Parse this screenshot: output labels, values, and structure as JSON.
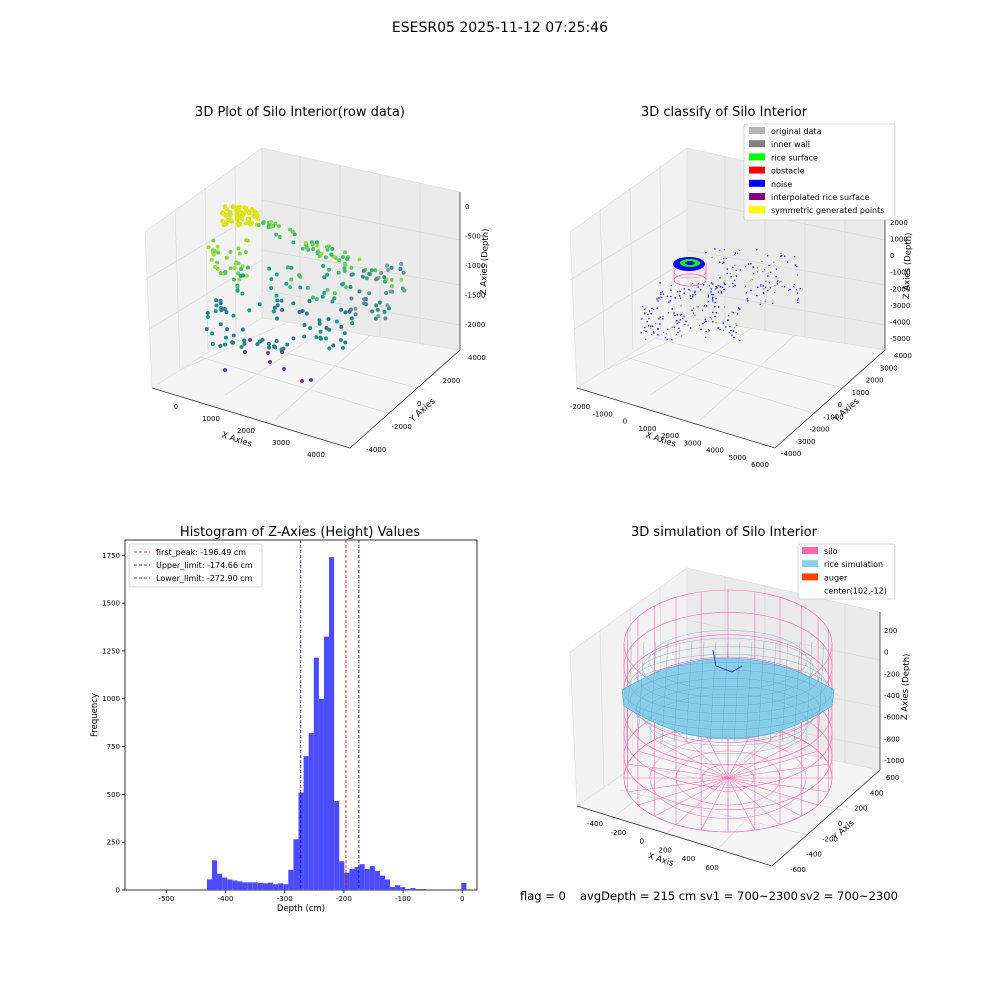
{
  "suptitle": "ESESR05 2025-11-12 07:25:46",
  "panels": {
    "raw": {
      "title": "3D Plot of Silo Interior(row data)",
      "xlabel": "X Axies",
      "ylabel": "Y Axies",
      "zlabel": "Z Axies (Depth)",
      "xticks": [
        "0",
        "1000",
        "2000",
        "3000",
        "4000"
      ],
      "yticks": [
        "4000",
        "2000",
        "0",
        "-2000",
        "-4000"
      ],
      "zticks": [
        "0",
        "-500",
        "-1000",
        "-1500",
        "-2000"
      ]
    },
    "classify": {
      "title": "3D classify of Silo Interior",
      "xlabel": "X Axies",
      "ylabel": "Y Axies",
      "zlabel": "Z Axies (Depth)",
      "xticks": [
        "-2000",
        "-1000",
        "0",
        "1000",
        "2000",
        "3000",
        "4000",
        "5000",
        "6000"
      ],
      "yticks": [
        "4000",
        "3000",
        "2000",
        "1000",
        "0",
        "-1000",
        "-2000",
        "-3000",
        "-4000"
      ],
      "zticks": [
        "2000",
        "1000",
        "0",
        "-1000",
        "-2000",
        "-3000",
        "-4000",
        "-5000"
      ],
      "legend": [
        {
          "label": "original data",
          "color": "#b4b4b4"
        },
        {
          "label": "inner wall",
          "color": "#808080"
        },
        {
          "label": "rice surface",
          "color": "#00ff00"
        },
        {
          "label": "obstacle",
          "color": "#ff0000"
        },
        {
          "label": "noise",
          "color": "#0000ff"
        },
        {
          "label": "interpolated rice surface",
          "color": "#800080"
        },
        {
          "label": "symmetric generated points",
          "color": "#ffff00"
        }
      ]
    },
    "simulation": {
      "title": "3D simulation of Silo Interior",
      "xlabel": "X Axis",
      "ylabel": "Y Axis",
      "zlabel": "Z Axies (Depth)",
      "xticks": [
        "-400",
        "-200",
        "0",
        "200",
        "400",
        "600"
      ],
      "yticks": [
        "600",
        "400",
        "200",
        "0",
        "-200",
        "-400",
        "-600"
      ],
      "zticks": [
        "200",
        "0",
        "-200",
        "-400",
        "-600",
        "-800",
        "-1000"
      ],
      "legend": [
        {
          "label": "silo",
          "color": "#ff69b4"
        },
        {
          "label": "rice simulation",
          "color": "#87ceeb"
        },
        {
          "label": "auger",
          "color": "#ff4500"
        },
        {
          "label": "center(102,-12)",
          "color": ""
        }
      ]
    }
  },
  "status": {
    "flag": "flag = 0",
    "avg": "avgDepth = 215 cm",
    "sv1": "sv1 = 700~2300",
    "sv2": "sv2 = 700~2300"
  },
  "chart_data": {
    "type": "bar",
    "title": "Histogram of Z-Axies (Height) Values",
    "xlabel": "Depth (cm)",
    "ylabel": "Frequency",
    "xlim": [
      -570,
      25
    ],
    "ylim": [
      0,
      1830
    ],
    "xticks": [
      -500,
      -400,
      -300,
      -200,
      -100,
      0
    ],
    "yticks": [
      0,
      250,
      500,
      750,
      1000,
      1250,
      1500,
      1750
    ],
    "bin_width": 8.6,
    "bins": [
      [
        -431.5,
        55
      ],
      [
        -422.9,
        155
      ],
      [
        -414.3,
        85
      ],
      [
        -405.7,
        65
      ],
      [
        -397.1,
        55
      ],
      [
        -388.5,
        50
      ],
      [
        -379.9,
        45
      ],
      [
        -371.3,
        40
      ],
      [
        -362.7,
        40
      ],
      [
        -354.1,
        40
      ],
      [
        -345.5,
        38
      ],
      [
        -336.9,
        35
      ],
      [
        -328.3,
        38
      ],
      [
        -319.7,
        30
      ],
      [
        -311.1,
        35
      ],
      [
        -302.5,
        30
      ],
      [
        -293.9,
        105
      ],
      [
        -285.3,
        265
      ],
      [
        -276.7,
        510
      ],
      [
        -268.1,
        700
      ],
      [
        -259.5,
        820
      ],
      [
        -250.9,
        1215
      ],
      [
        -242.3,
        1000
      ],
      [
        -233.7,
        1325
      ],
      [
        -225.1,
        1740
      ],
      [
        -216.5,
        465
      ],
      [
        -207.9,
        150
      ],
      [
        -199.3,
        90
      ],
      [
        -190.7,
        110
      ],
      [
        -182.1,
        120
      ],
      [
        -173.5,
        135
      ],
      [
        -164.9,
        110
      ],
      [
        -156.3,
        125
      ],
      [
        -147.7,
        100
      ],
      [
        -139.1,
        75
      ],
      [
        -130.5,
        55
      ],
      [
        -121.9,
        15
      ],
      [
        -113.3,
        25
      ],
      [
        -104.7,
        15
      ],
      [
        -96.1,
        5
      ],
      [
        -87.5,
        10
      ],
      [
        -78.9,
        5
      ],
      [
        -70.3,
        5
      ],
      [
        -61.7,
        0
      ],
      [
        -53.1,
        0
      ],
      [
        -44.5,
        0
      ],
      [
        -35.9,
        0
      ],
      [
        -27.3,
        0
      ],
      [
        -18.7,
        0
      ],
      [
        -10.1,
        0
      ],
      [
        -1.5,
        38
      ]
    ],
    "vlines": [
      {
        "label": "first_peak: -196.49 cm",
        "x": -196.49,
        "color": "#ff0000"
      },
      {
        "label": "Upper_limit: -174.66 cm",
        "x": -174.66,
        "color": "#00008b"
      },
      {
        "label": "Lower_limit: -272.90 cm",
        "x": -272.9,
        "color": "#0000ff"
      }
    ],
    "bar_color": "#4b4bff"
  }
}
